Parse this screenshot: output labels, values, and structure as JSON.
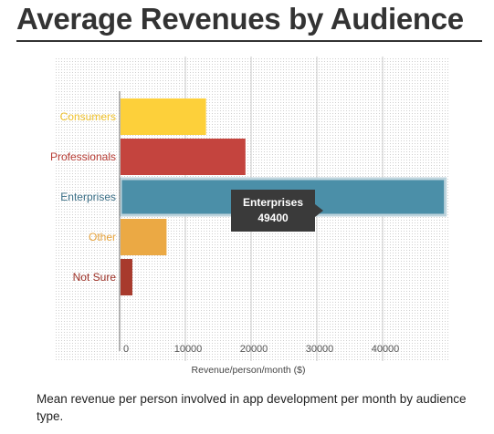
{
  "header": {
    "title": "Average Revenues by Audience"
  },
  "caption": "Mean revenue per person involved in app development per month by audience type.",
  "tooltip": {
    "category": "Enterprises",
    "value": "49400"
  },
  "chart_data": {
    "type": "bar",
    "orientation": "horizontal",
    "title": "Average Revenues by Audience",
    "xlabel": "Revenue/person/month ($)",
    "ylabel": "",
    "xlim": [
      0,
      50000
    ],
    "xticks": [
      0,
      10000,
      20000,
      30000,
      40000
    ],
    "xtick_labels": [
      "0",
      "10000",
      "20000",
      "30000",
      "40000"
    ],
    "grid": true,
    "categories": [
      "Consumers",
      "Professionals",
      "Enterprises",
      "Other",
      "Not Sure"
    ],
    "values": [
      13000,
      19000,
      49400,
      7000,
      1800
    ],
    "colors": [
      "#fdd03a",
      "#c4443e",
      "#4b8fa8",
      "#eba944",
      "#a83a2d"
    ],
    "label_colors": [
      "#f0c22c",
      "#b73b33",
      "#3a6f87",
      "#e6a43f",
      "#9c2f25"
    ],
    "highlighted": "Enterprises"
  }
}
